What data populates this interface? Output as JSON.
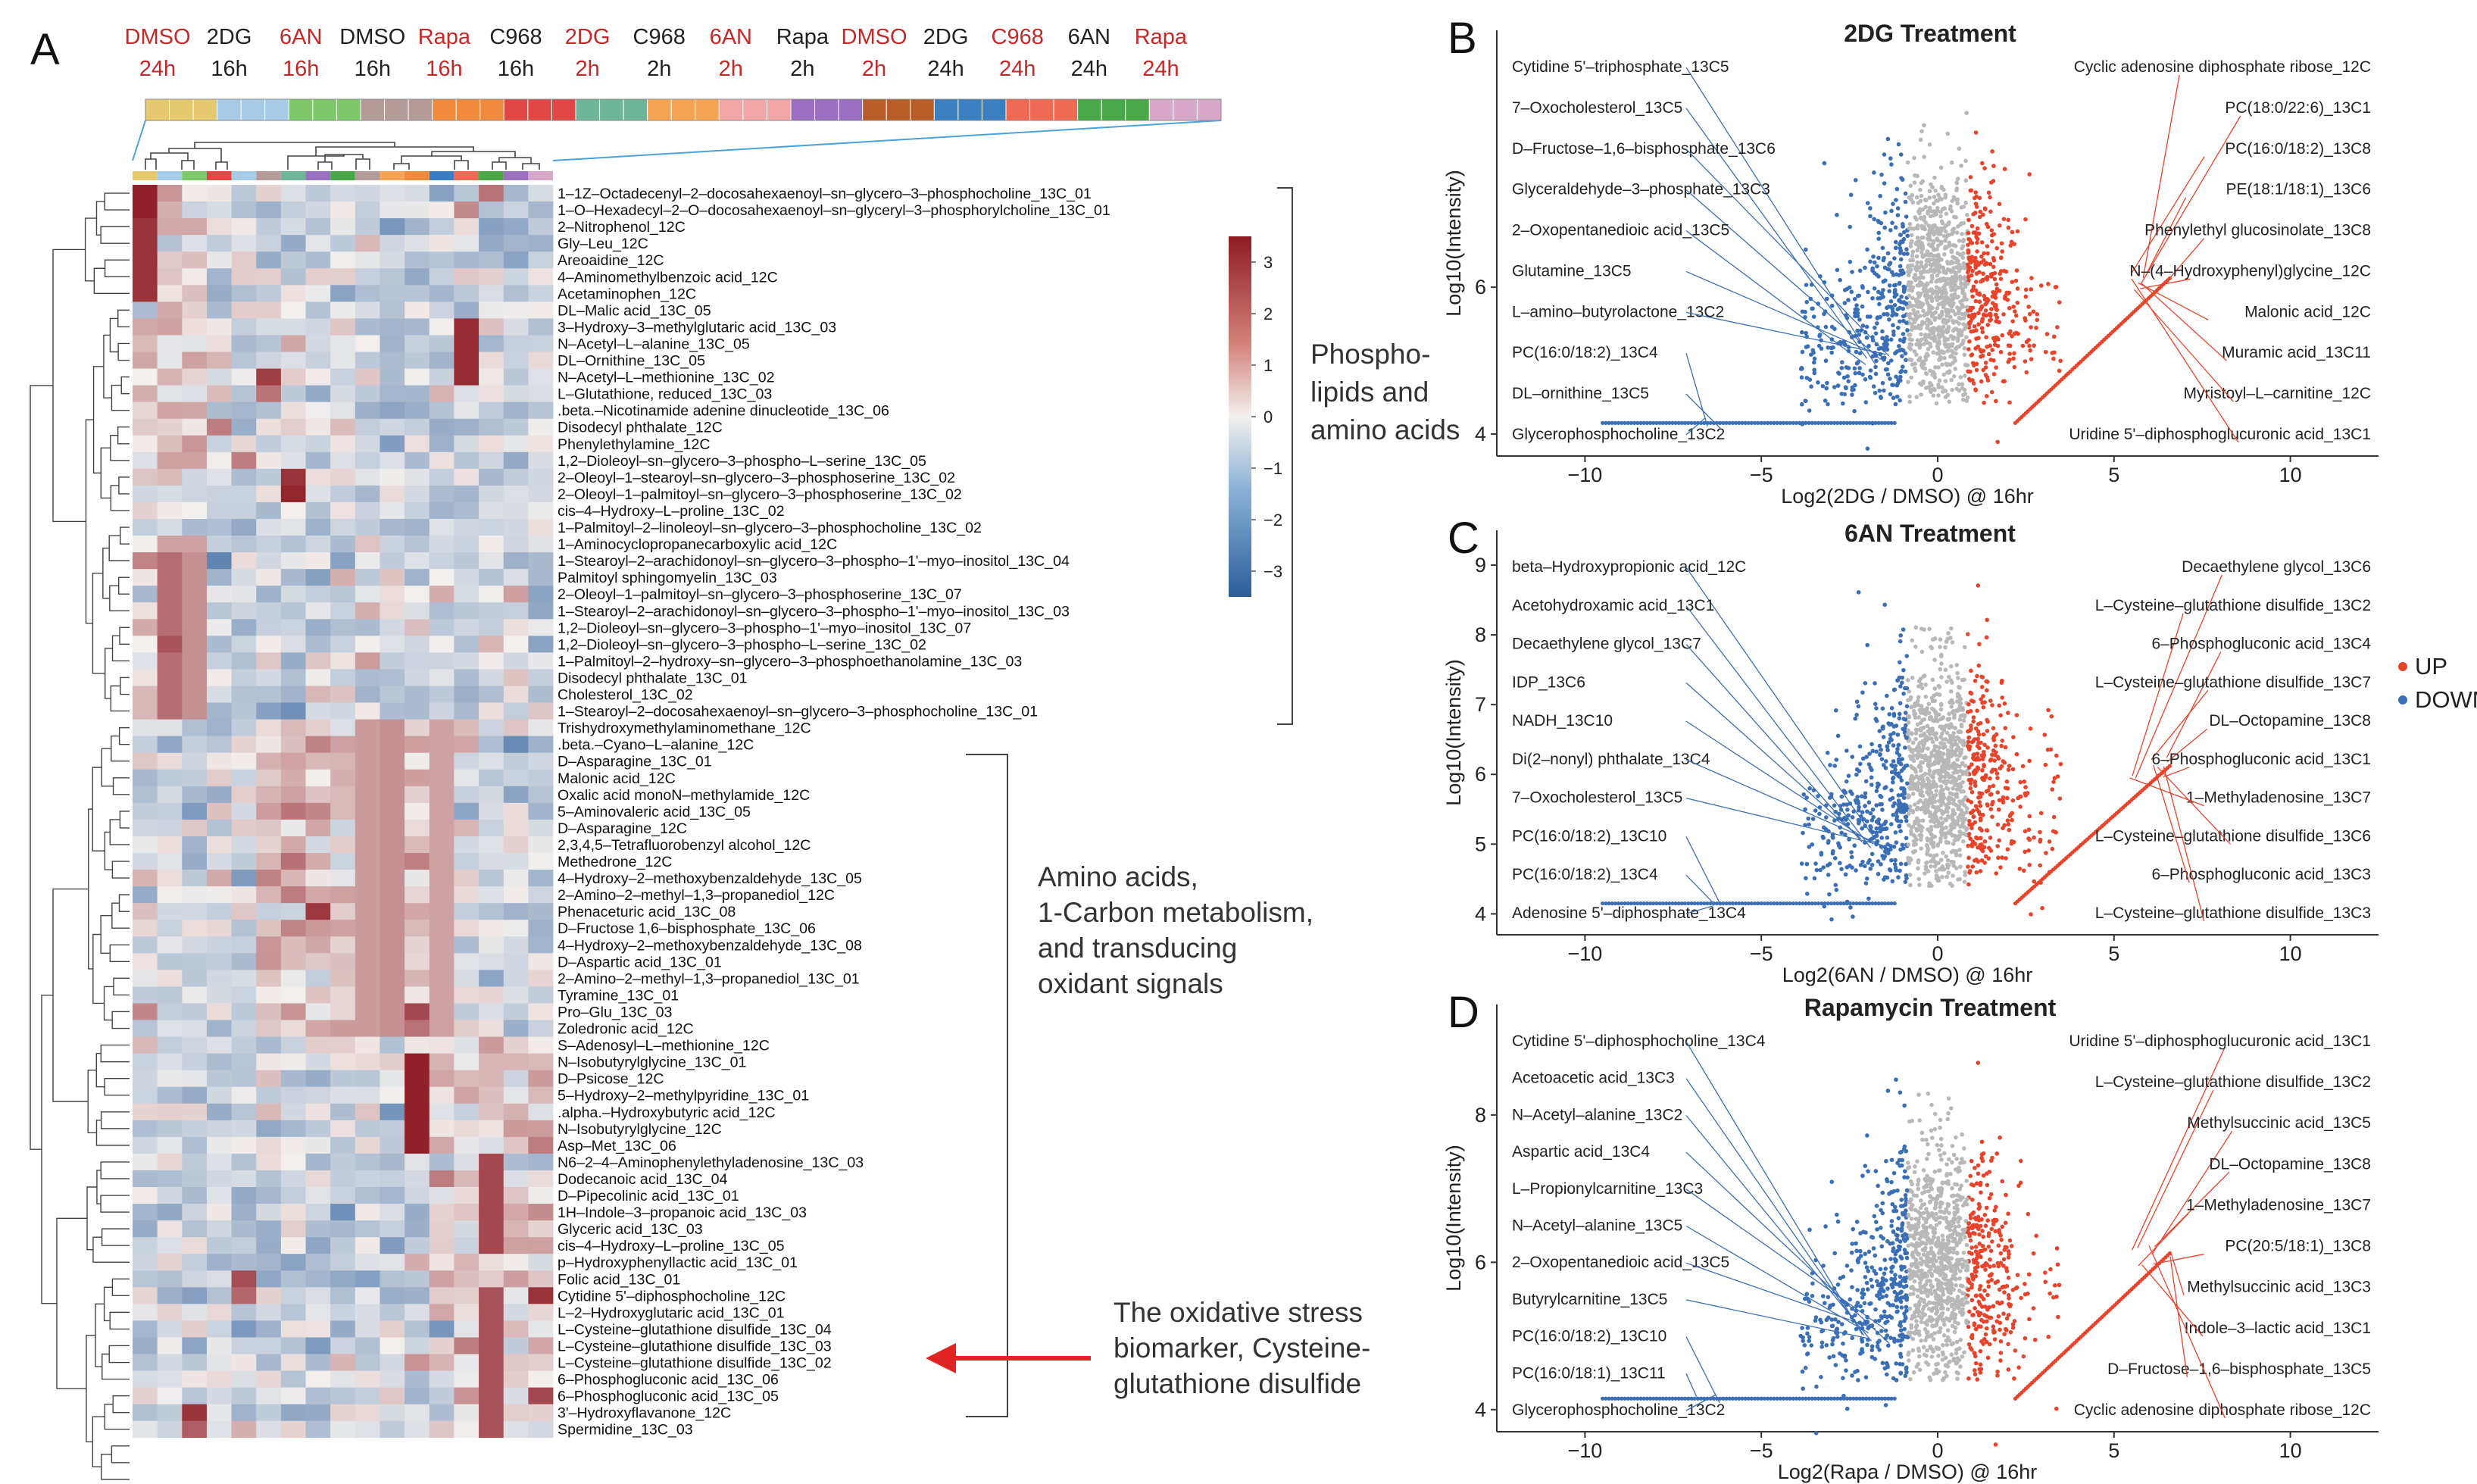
{
  "panel_a": {
    "letter": "A",
    "conditions": [
      {
        "treatment": "DMSO",
        "time": "24h",
        "color": "#c62828"
      },
      {
        "treatment": "2DG",
        "time": "16h",
        "color": "#222222"
      },
      {
        "treatment": "6AN",
        "time": "16h",
        "color": "#c62828"
      },
      {
        "treatment": "DMSO",
        "time": "16h",
        "color": "#222222"
      },
      {
        "treatment": "Rapa",
        "time": "16h",
        "color": "#c62828"
      },
      {
        "treatment": "C968",
        "time": "16h",
        "color": "#222222"
      },
      {
        "treatment": "2DG",
        "time": "2h",
        "color": "#c62828"
      },
      {
        "treatment": "C968",
        "time": "2h",
        "color": "#222222"
      },
      {
        "treatment": "6AN",
        "time": "2h",
        "color": "#c62828"
      },
      {
        "treatment": "Rapa",
        "time": "2h",
        "color": "#222222"
      },
      {
        "treatment": "DMSO",
        "time": "2h",
        "color": "#c62828"
      },
      {
        "treatment": "2DG",
        "time": "24h",
        "color": "#222222"
      },
      {
        "treatment": "C968",
        "time": "24h",
        "color": "#c62828"
      },
      {
        "treatment": "6AN",
        "time": "24h",
        "color": "#222222"
      },
      {
        "treatment": "Rapa",
        "time": "24h",
        "color": "#c62828"
      }
    ],
    "condition_bar_colors": [
      "#e5c96e",
      "#a7cbe6",
      "#7ec86b",
      "#b49a98",
      "#f08a3c",
      "#e04848",
      "#6fb59a",
      "#f4a454",
      "#f2a7a7",
      "#9b6fc0",
      "#b85c2a",
      "#3c7fc0",
      "#ee6a55",
      "#4aa84a",
      "#d8a8c8"
    ],
    "rows": [
      "1–1Z–Octadecenyl–2–docosahexaenoyl–sn–glycero–3–phosphocholine_13C_01",
      "1–O–Hexadecyl–2–O–docosahexaenoyl–sn–glyceryl–3–phosphorylcholine_13C_01",
      "2–Nitrophenol_12C",
      "Gly–Leu_12C",
      "Areoaidine_12C",
      "4–Aminomethylbenzoic acid_12C",
      "Acetaminophen_12C",
      "DL–Malic acid_13C_05",
      "3–Hydroxy–3–methylglutaric acid_13C_03",
      "N–Acetyl–L–alanine_13C_05",
      "DL–Ornithine_13C_05",
      "N–Acetyl–L–methionine_13C_02",
      "L–Glutathione, reduced_13C_03",
      ".beta.–Nicotinamide adenine dinucleotide_13C_06",
      "Disodecyl phthalate_12C",
      "Phenylethylamine_12C",
      "1,2–Dioleoyl–sn–glycero–3–phospho–L–serine_13C_05",
      "2–Oleoyl–1–stearoyl–sn–glycero–3–phosphoserine_13C_02",
      "2–Oleoyl–1–palmitoyl–sn–glycero–3–phosphoserine_13C_02",
      "cis–4–Hydroxy–L–proline_13C_02",
      "1–Palmitoyl–2–linoleoyl–sn–glycero–3–phosphocholine_13C_02",
      "1–Aminocyclopropanecarboxylic acid_12C",
      "1–Stearoyl–2–arachidonoyl–sn–glycero–3–phospho–1'–myo–inositol_13C_04",
      "Palmitoyl sphingomyelin_13C_03",
      "2–Oleoyl–1–palmitoyl–sn–glycero–3–phosphoserine_13C_07",
      "1–Stearoyl–2–arachidonoyl–sn–glycero–3–phospho–1'–myo–inositol_13C_03",
      "1,2–Dioleoyl–sn–glycero–3–phospho–1'–myo–inositol_13C_07",
      "1,2–Dioleoyl–sn–glycero–3–phospho–L–serine_13C_02",
      "1–Palmitoyl–2–hydroxy–sn–glycero–3–phosphoethanolamine_13C_03",
      "Disodecyl phthalate_13C_01",
      "Cholesterol_13C_02",
      "1–Stearoyl–2–docosahexaenoyl–sn–glycero–3–phosphocholine_13C_01",
      "Trishydroxymethylaminomethane_12C",
      ".beta.–Cyano–L–alanine_12C",
      "D–Asparagine_13C_01",
      "Malonic acid_12C",
      "Oxalic acid monoN–methylamide_12C",
      "5–Aminovaleric acid_13C_05",
      "D–Asparagine_12C",
      "2,3,4,5–Tetrafluorobenzyl alcohol_12C",
      "Methedrone_12C",
      "4–Hydroxy–2–methoxybenzaldehyde_13C_05",
      "2–Amino–2–methyl–1,3–propanediol_12C",
      "Phenaceturic acid_13C_08",
      "D–Fructose 1,6–bisphosphate_13C_06",
      "4–Hydroxy–2–methoxybenzaldehyde_13C_08",
      "D–Aspartic acid_13C_01",
      "2–Amino–2–methyl–1,3–propanediol_13C_01",
      "Tyramine_13C_01",
      "Pro–Glu_13C_03",
      "Zoledronic acid_12C",
      "S–Adenosyl–L–methionine_12C",
      "N–Isobutyrylglycine_13C_01",
      "D–Psicose_12C",
      "5–Hydroxy–2–methylpyridine_13C_01",
      ".alpha.–Hydroxybutyric acid_12C",
      "N–Isobutyrylglycine_12C",
      "Asp–Met_13C_06",
      "N6–2–4–Aminophenylethyladenosine_13C_03",
      "Dodecanoic acid_13C_04",
      "D–Pipecolinic acid_13C_01",
      "1H–Indole–3–propanoic acid_13C_03",
      "Glyceric acid_13C_03",
      "cis–4–Hydroxy–L–proline_13C_05",
      "p–Hydroxyphenyllactic acid_13C_01",
      "Folic acid_13C_01",
      "Cytidine 5'–diphosphocholine_12C",
      "L–2–Hydroxyglutaric acid_13C_01",
      "L–Cysteine–glutathione disulfide_13C_04",
      "L–Cysteine–glutathione disulfide_13C_03",
      "L–Cysteine–glutathione disulfide_13C_02",
      "6–Phosphogluconic acid_13C_06",
      "6–Phosphogluconic acid_13C_05",
      "3'–Hydroxyflavanone_12C",
      "Spermidine_13C_03"
    ],
    "colorbar": {
      "ticks": [
        3,
        2,
        1,
        0,
        -1,
        -2,
        -3
      ],
      "tick_labels": [
        "3",
        "2",
        "1",
        "0",
        "−1",
        "−2",
        "−3"
      ],
      "low": "#2b5d9b",
      "mid": "#f3f0ee",
      "high": "#8e1b24"
    },
    "group_annotations": [
      {
        "lines": [
          "Phospho-",
          "lipids and",
          "amino acids"
        ]
      },
      {
        "lines": [
          "Amino acids,",
          "1-Carbon metabolism,",
          "and transducing",
          "oxidant signals"
        ]
      },
      {
        "lines": [
          "The oxidative stress",
          "biomarker, Cysteine-",
          "glutathione disulfide"
        ]
      }
    ]
  },
  "chart_data": [
    {
      "type": "scatter",
      "panel": "B",
      "title": "2DG Treatment",
      "xlabel": "Log2(2DG / DMSO) @ 16hr",
      "ylabel": "Log10(Intensity)",
      "xlim": [
        -12.5,
        12.5
      ],
      "ylim": [
        3.7,
        9.5
      ],
      "xticks": [
        -10,
        -5,
        0,
        5,
        10
      ],
      "xtick_labels": [
        "−10",
        "−5",
        "0",
        "5",
        "10"
      ],
      "yticks": [
        4,
        6
      ],
      "ytick_labels": [
        "4",
        "6"
      ],
      "left_labels": [
        "Cytidine 5'–triphosphate_13C5",
        "7–Oxocholesterol_13C5",
        "D–Fructose–1,6–bisphosphate_13C6",
        "Glyceraldehyde–3–phosphate_13C3",
        "2–Oxopentanedioic acid_13C5",
        "Glutamine_13C5",
        "L–amino–butyrolactone_13C2",
        "PC(16:0/18:2)_13C4",
        "DL–ornithine_13C5",
        "Glycerophosphocholine_13C2"
      ],
      "right_labels": [
        "Cyclic adenosine diphosphate ribose_12C",
        "PC(18:0/22:6)_13C1",
        "PC(16:0/18:2)_13C8",
        "PE(18:1/18:1)_13C6",
        "Phenylethyl glucosinolate_13C8",
        "N–(4–Hydroxyphenyl)glycine_12C",
        "Malonic acid_12C",
        "Muramic acid_13C11",
        "Myristoyl–L–carnitine_12C",
        "Uridine 5'–diphosphoglucuronic acid_13C1"
      ]
    },
    {
      "type": "scatter",
      "panel": "C",
      "title": "6AN Treatment",
      "xlabel": "Log2(6AN / DMSO) @ 16hr",
      "ylabel": "Log10(Intensity)",
      "xlim": [
        -12.5,
        12.5
      ],
      "ylim": [
        3.7,
        9.5
      ],
      "xticks": [
        -10,
        -5,
        0,
        5,
        10
      ],
      "xtick_labels": [
        "−10",
        "−5",
        "0",
        "5",
        "10"
      ],
      "yticks": [
        4,
        5,
        6,
        7,
        8,
        9
      ],
      "ytick_labels": [
        "4",
        "5",
        "6",
        "7",
        "8",
        "9"
      ],
      "left_labels": [
        "beta–Hydroxypropionic acid_12C",
        "Acetohydroxamic acid_13C1",
        "Decaethylene glycol_13C7",
        "IDP_13C6",
        "NADH_13C10",
        "Di(2–nonyl) phthalate_13C4",
        "7–Oxocholesterol_13C5",
        "PC(16:0/18:2)_13C10",
        "PC(16:0/18:2)_13C4",
        "Adenosine 5'–diphosphate_13C4"
      ],
      "right_labels": [
        "Decaethylene glycol_13C6",
        "L–Cysteine–glutathione disulfide_13C2",
        "6–Phosphogluconic acid_13C4",
        "L–Cysteine–glutathione disulfide_13C7",
        "DL–Octopamine_13C8",
        "6–Phosphogluconic acid_13C1",
        "1–Methyladenosine_13C7",
        "L–Cysteine–glutathione disulfide_13C6",
        "6–Phosphogluconic acid_13C3",
        "L–Cysteine–glutathione disulfide_13C3"
      ],
      "legend": [
        {
          "label": "UP",
          "color": "#e8432b"
        },
        {
          "label": "DOWN",
          "color": "#3a6fb5"
        }
      ]
    },
    {
      "type": "scatter",
      "panel": "D",
      "title": "Rapamycin Treatment",
      "xlabel": "Log2(Rapa / DMSO) @ 16hr",
      "ylabel": "Log10(Intensity)",
      "xlim": [
        -12.5,
        12.5
      ],
      "ylim": [
        3.7,
        9.5
      ],
      "xticks": [
        -10,
        -5,
        0,
        5,
        10
      ],
      "xtick_labels": [
        "−10",
        "−5",
        "0",
        "5",
        "10"
      ],
      "yticks": [
        4,
        6,
        8
      ],
      "ytick_labels": [
        "4",
        "6",
        "8"
      ],
      "left_labels": [
        "Cytidine 5'–diphosphocholine_13C4",
        "Acetoacetic acid_13C3",
        "N–Acetyl–alanine_13C2",
        "Aspartic acid_13C4",
        "L–Propionylcarnitine_13C3",
        "N–Acetyl–alanine_13C5",
        "2–Oxopentanedioic acid_13C5",
        "Butyrylcarnitine_13C5",
        "PC(16:0/18:2)_13C10",
        "PC(16:0/18:1)_13C11",
        "Glycerophosphocholine_13C2"
      ],
      "right_labels": [
        "Uridine 5'–diphosphoglucuronic acid_13C1",
        "L–Cysteine–glutathione disulfide_13C2",
        "Methylsuccinic acid_13C5",
        "DL–Octopamine_13C8",
        "1–Methyladenosine_13C7",
        "PC(20:5/18:1)_13C8",
        "Methylsuccinic acid_13C3",
        "Indole–3–lactic acid_13C1",
        "D–Fructose–1,6–bisphosphate_13C5",
        "Cyclic adenosine diphosphate ribose_12C"
      ]
    }
  ]
}
